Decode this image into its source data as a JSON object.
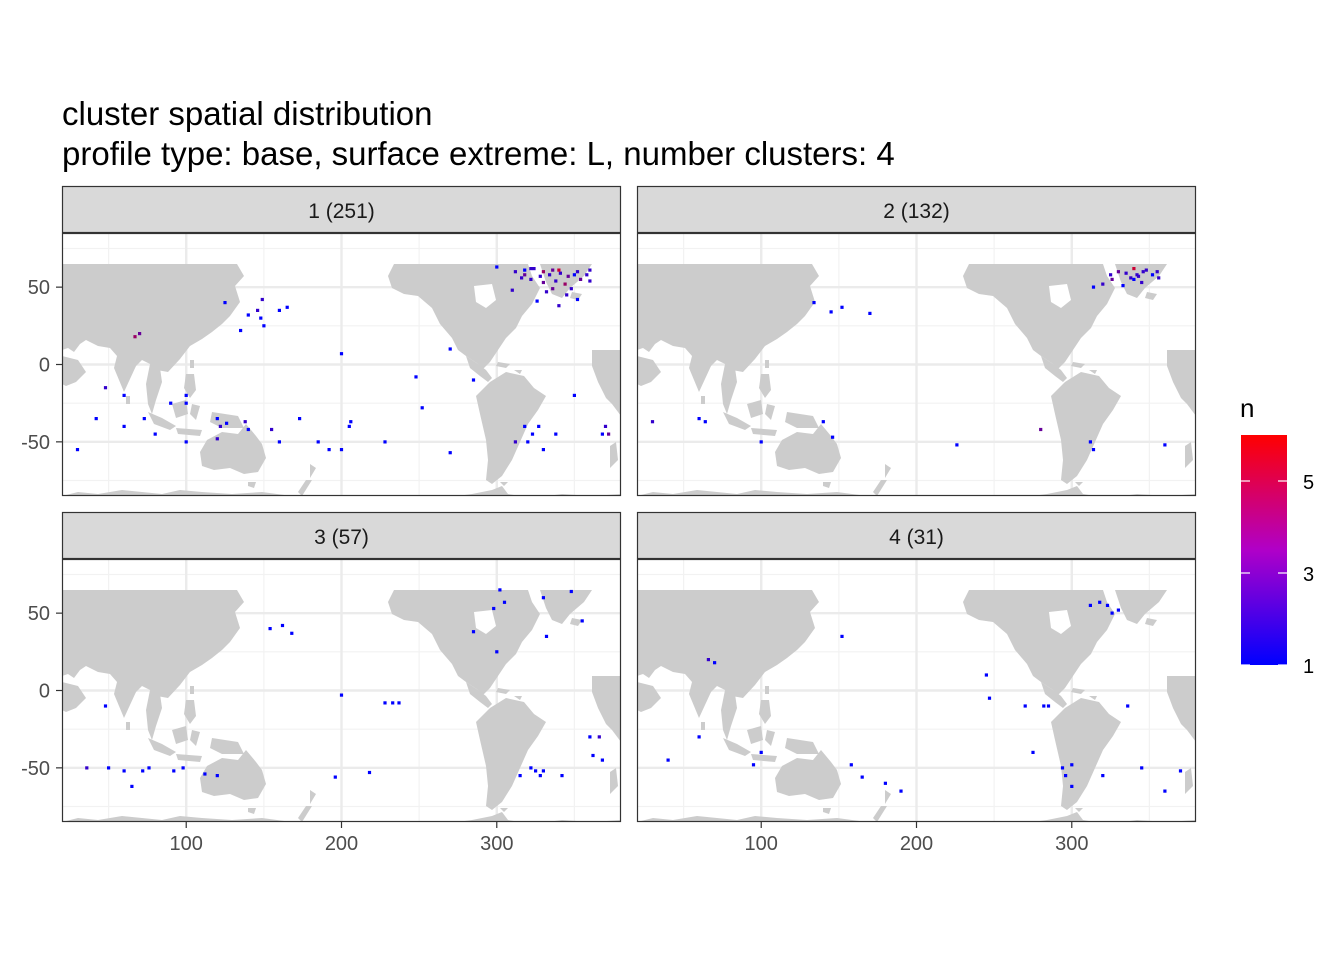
{
  "title": "cluster spatial distribution",
  "subtitle": "profile type: base, surface extreme: L, number clusters: 4",
  "colors": {
    "low": "#0000ff",
    "high": "#ff0000",
    "land": "#cccccc",
    "strip": "#d9d9d9",
    "grid": "#ebebeb"
  },
  "chart_data": {
    "type": "heatmap",
    "x_ticks": [
      100,
      200,
      300
    ],
    "y_ticks": [
      50,
      0,
      -50
    ],
    "x_tick_labels": [
      "100",
      "200",
      "300"
    ],
    "y_tick_labels": [
      "50",
      "0",
      "-50"
    ],
    "xlim": [
      20,
      380
    ],
    "ylim": [
      -85,
      85
    ],
    "legend": {
      "title": "n",
      "breaks": [
        1,
        3,
        5
      ],
      "break_labels": [
        "1",
        "3",
        "5"
      ],
      "range": [
        1,
        6
      ],
      "position": "right"
    },
    "facets": [
      {
        "label": "1 (251)",
        "points": [
          [
            312,
            60,
            2
          ],
          [
            318,
            58,
            3
          ],
          [
            324,
            62,
            2
          ],
          [
            330,
            60,
            4
          ],
          [
            336,
            61,
            3
          ],
          [
            341,
            59,
            2
          ],
          [
            346,
            57,
            3
          ],
          [
            352,
            60,
            2
          ],
          [
            358,
            58,
            2
          ],
          [
            322,
            55,
            2
          ],
          [
            330,
            53,
            3
          ],
          [
            338,
            54,
            2
          ],
          [
            344,
            52,
            4
          ],
          [
            348,
            49,
            2
          ],
          [
            332,
            47,
            2
          ],
          [
            326,
            41,
            1
          ],
          [
            340,
            38,
            2
          ],
          [
            352,
            42,
            1
          ],
          [
            340,
            61,
            5
          ],
          [
            334,
            58,
            2
          ],
          [
            316,
            56,
            2
          ],
          [
            354,
            55,
            3
          ],
          [
            360,
            61,
            2
          ],
          [
            300,
            63,
            1
          ],
          [
            310,
            48,
            2
          ],
          [
            345,
            45,
            2
          ],
          [
            350,
            58,
            1
          ],
          [
            328,
            57,
            2
          ],
          [
            336,
            49,
            3
          ],
          [
            322,
            62,
            2
          ],
          [
            318,
            61,
            1
          ],
          [
            360,
            54,
            2
          ],
          [
            67,
            18,
            4
          ],
          [
            70,
            20,
            3
          ],
          [
            146,
            35,
            2
          ],
          [
            148,
            30,
            1
          ],
          [
            150,
            25,
            1
          ],
          [
            125,
            40,
            1
          ],
          [
            165,
            37,
            1
          ],
          [
            160,
            35,
            1
          ],
          [
            149,
            42,
            2
          ],
          [
            140,
            32,
            1
          ],
          [
            135,
            22,
            1
          ],
          [
            200,
            7,
            1
          ],
          [
            270,
            10,
            1
          ],
          [
            285,
            -10,
            1
          ],
          [
            248,
            -8,
            1
          ],
          [
            48,
            -15,
            2
          ],
          [
            42,
            -35,
            1
          ],
          [
            30,
            -55,
            1
          ],
          [
            60,
            -20,
            1
          ],
          [
            73,
            -35,
            1
          ],
          [
            60,
            -40,
            1
          ],
          [
            80,
            -45,
            1
          ],
          [
            90,
            -25,
            1
          ],
          [
            100,
            -20,
            1
          ],
          [
            100,
            -25,
            1
          ],
          [
            120,
            -35,
            1
          ],
          [
            122,
            -40,
            2
          ],
          [
            120,
            -48,
            2
          ],
          [
            126,
            -38,
            1
          ],
          [
            138,
            -37,
            2
          ],
          [
            140,
            -42,
            1
          ],
          [
            155,
            -42,
            2
          ],
          [
            173,
            -35,
            1
          ],
          [
            185,
            -50,
            1
          ],
          [
            192,
            -55,
            1
          ],
          [
            200,
            -55,
            1
          ],
          [
            206,
            -37,
            1
          ],
          [
            205,
            -40,
            1
          ],
          [
            228,
            -50,
            1
          ],
          [
            252,
            -28,
            1
          ],
          [
            270,
            -57,
            1
          ],
          [
            312,
            -50,
            2
          ],
          [
            318,
            -40,
            1
          ],
          [
            320,
            -50,
            1
          ],
          [
            323,
            -45,
            1
          ],
          [
            327,
            -40,
            1
          ],
          [
            330,
            -55,
            1
          ],
          [
            350,
            -20,
            1
          ],
          [
            338,
            -45,
            1
          ],
          [
            370,
            -40,
            2
          ],
          [
            372,
            -45,
            3
          ],
          [
            368,
            -45,
            1
          ],
          [
            100,
            -50,
            1
          ],
          [
            160,
            -50,
            1
          ]
        ]
      },
      {
        "label": "2 (132)",
        "points": [
          [
            330,
            60,
            3
          ],
          [
            335,
            59,
            2
          ],
          [
            340,
            62,
            5
          ],
          [
            342,
            58,
            2
          ],
          [
            346,
            60,
            2
          ],
          [
            352,
            58,
            1
          ],
          [
            356,
            56,
            2
          ],
          [
            326,
            55,
            3
          ],
          [
            320,
            52,
            2
          ],
          [
            333,
            51,
            1
          ],
          [
            345,
            53,
            2
          ],
          [
            348,
            61,
            2
          ],
          [
            338,
            56,
            2
          ],
          [
            355,
            60,
            2
          ],
          [
            314,
            50,
            1
          ],
          [
            325,
            58,
            2
          ],
          [
            340,
            55,
            1
          ],
          [
            343,
            57,
            2
          ],
          [
            134,
            40,
            1
          ],
          [
            145,
            34,
            1
          ],
          [
            170,
            33,
            1
          ],
          [
            152,
            37,
            1
          ],
          [
            30,
            -37,
            2
          ],
          [
            60,
            -35,
            1
          ],
          [
            64,
            -37,
            1
          ],
          [
            100,
            -50,
            1
          ],
          [
            140,
            -37,
            1
          ],
          [
            146,
            -47,
            1
          ],
          [
            226,
            -52,
            1
          ],
          [
            280,
            -42,
            3
          ],
          [
            312,
            -50,
            1
          ],
          [
            314,
            -55,
            1
          ],
          [
            360,
            -52,
            1
          ]
        ]
      },
      {
        "label": "3 (57)",
        "points": [
          [
            330,
            60,
            1
          ],
          [
            348,
            64,
            1
          ],
          [
            302,
            65,
            1
          ],
          [
            298,
            53,
            1
          ],
          [
            305,
            57,
            1
          ],
          [
            355,
            45,
            1
          ],
          [
            332,
            35,
            1
          ],
          [
            285,
            38,
            1
          ],
          [
            154,
            40,
            1
          ],
          [
            162,
            42,
            1
          ],
          [
            168,
            37,
            1
          ],
          [
            300,
            25,
            1
          ],
          [
            200,
            -3,
            1
          ],
          [
            228,
            -8,
            1
          ],
          [
            233,
            -8,
            1
          ],
          [
            237,
            -8,
            1
          ],
          [
            48,
            -10,
            1
          ],
          [
            36,
            -50,
            2
          ],
          [
            50,
            -50,
            1
          ],
          [
            60,
            -52,
            1
          ],
          [
            72,
            -52,
            1
          ],
          [
            76,
            -50,
            1
          ],
          [
            92,
            -52,
            1
          ],
          [
            98,
            -50,
            1
          ],
          [
            112,
            -54,
            1
          ],
          [
            120,
            -55,
            1
          ],
          [
            218,
            -53,
            1
          ],
          [
            196,
            -56,
            1
          ],
          [
            322,
            -50,
            1
          ],
          [
            325,
            -52,
            1
          ],
          [
            328,
            -55,
            1
          ],
          [
            315,
            -55,
            1
          ],
          [
            330,
            -52,
            1
          ],
          [
            342,
            -55,
            1
          ],
          [
            360,
            -30,
            1
          ],
          [
            362,
            -42,
            1
          ],
          [
            366,
            -30,
            2
          ],
          [
            368,
            -45,
            1
          ],
          [
            65,
            -62,
            1
          ]
        ]
      },
      {
        "label": "4 (31)",
        "points": [
          [
            312,
            55,
            1
          ],
          [
            318,
            57,
            1
          ],
          [
            323,
            55,
            1
          ],
          [
            326,
            50,
            1
          ],
          [
            330,
            52,
            1
          ],
          [
            152,
            35,
            1
          ],
          [
            66,
            20,
            2
          ],
          [
            70,
            18,
            1
          ],
          [
            247,
            -5,
            1
          ],
          [
            282,
            -10,
            1
          ],
          [
            285,
            -10,
            1
          ],
          [
            336,
            -10,
            1
          ],
          [
            270,
            -10,
            1
          ],
          [
            60,
            -30,
            1
          ],
          [
            95,
            -48,
            1
          ],
          [
            165,
            -56,
            1
          ],
          [
            180,
            -60,
            1
          ],
          [
            275,
            -40,
            1
          ],
          [
            294,
            -50,
            1
          ],
          [
            296,
            -55,
            1
          ],
          [
            320,
            -55,
            1
          ],
          [
            345,
            -50,
            1
          ],
          [
            190,
            -65,
            1
          ],
          [
            40,
            -45,
            1
          ],
          [
            370,
            -52,
            1
          ],
          [
            300,
            -48,
            1
          ],
          [
            360,
            -65,
            1
          ],
          [
            300,
            -62,
            1
          ],
          [
            158,
            -48,
            1
          ],
          [
            100,
            -40,
            1
          ],
          [
            245,
            10,
            1
          ]
        ]
      }
    ]
  }
}
